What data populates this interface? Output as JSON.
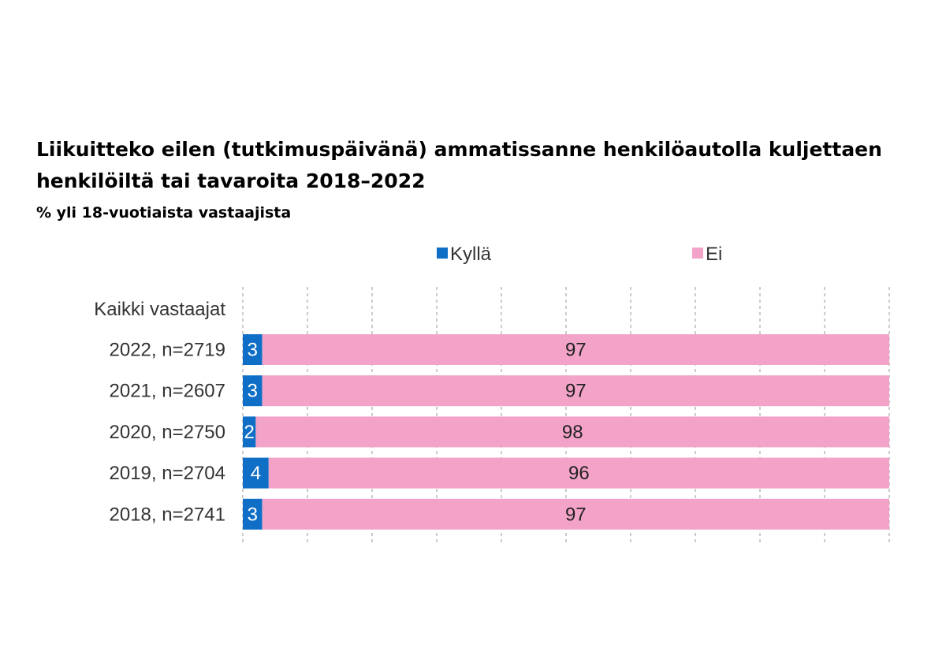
{
  "chart_data": {
    "type": "bar",
    "stacked": true,
    "orientation": "horizontal",
    "title": "Liikuitteko eilen (tutkimuspäivänä) ammatissanne henkilöautolla kuljettaen henkilöiltä tai tavaroita 2018–2022",
    "subtitle": "% yli 18-vuotiaista vastaajista",
    "group_label": "Kaikki vastaajat",
    "categories": [
      "2022, n=2719",
      "2021, n=2607",
      "2020, n=2750",
      "2019, n=2704",
      "2018, n=2741"
    ],
    "series": [
      {
        "name": "Kyllä",
        "values": [
          3,
          3,
          2,
          4,
          3
        ],
        "color": "#0f6fc6",
        "label_color": "#ffffff"
      },
      {
        "name": "Ei",
        "values": [
          97,
          97,
          98,
          96,
          97
        ],
        "color": "#f4a3c8",
        "label_color": "#222222"
      }
    ],
    "xlim": [
      0,
      100
    ],
    "grid": true,
    "grid_style": "dashed vertical",
    "legend_position": "top"
  }
}
